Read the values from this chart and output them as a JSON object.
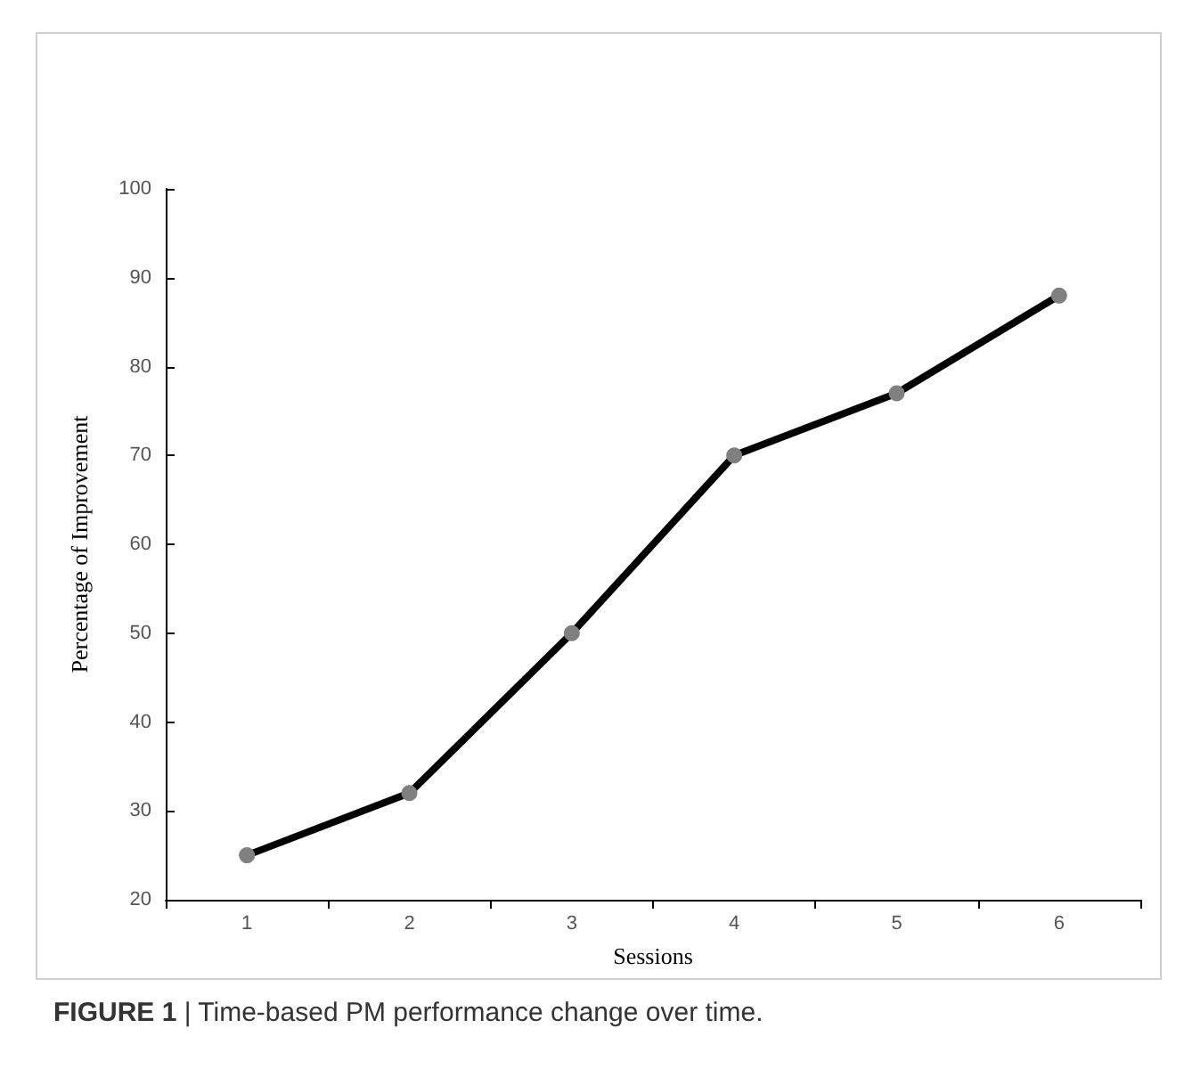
{
  "chart_data": {
    "type": "line",
    "categories": [
      "1",
      "2",
      "3",
      "4",
      "5",
      "6"
    ],
    "series": [
      {
        "color": "#000000",
        "colors": [
          "#808080",
          "#808080",
          "#808080",
          "#808080",
          "#808080",
          "#808080"
        ],
        "values": [
          25,
          32,
          50,
          70,
          77,
          88
        ]
      }
    ],
    "xlabel": "Sessions",
    "ylabel": "Percentage of Improvement",
    "ylim": [
      20,
      100
    ],
    "yticks": [
      20,
      30,
      40,
      50,
      60,
      70,
      80,
      90,
      100
    ],
    "marker": "circle",
    "line_style": "solid",
    "annotations": [
      "FIGURE 1 | Time-based PM performance change over time."
    ]
  }
}
